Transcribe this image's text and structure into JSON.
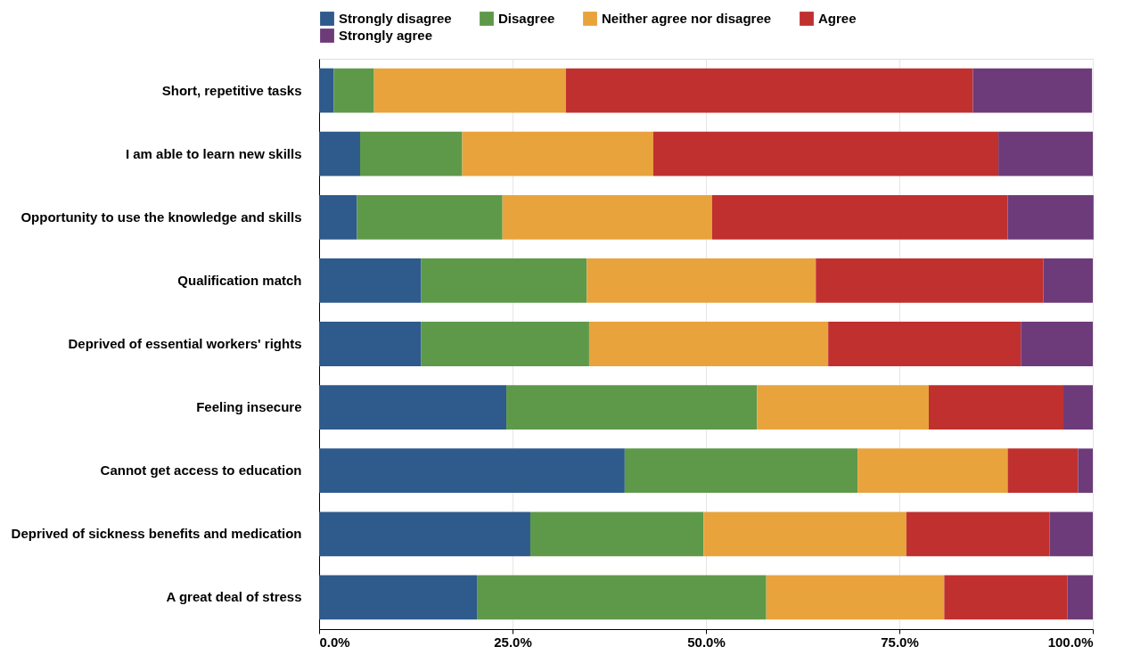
{
  "chart_data": {
    "type": "bar",
    "orientation": "horizontal",
    "stacked": true,
    "categories": [
      "Short, repetitive tasks",
      "I am able to learn new skills",
      "Opportunity to use the knowledge and skills",
      "Qualification match",
      "Deprived of essential workers' rights",
      "Feeling insecure",
      "Cannot get access to education",
      "Deprived of sickness benefits and medication",
      "A great deal of stress"
    ],
    "series": [
      {
        "name": "Strongly disagree",
        "color": "#2e5a8c",
        "values": [
          1.9,
          5.3,
          4.9,
          13.2,
          13.2,
          24.2,
          39.5,
          27.3,
          20.4
        ]
      },
      {
        "name": "Disagree",
        "color": "#5e994a",
        "values": [
          5.2,
          13.2,
          18.8,
          21.4,
          21.7,
          32.4,
          30.1,
          22.4,
          37.4
        ]
      },
      {
        "name": "Neither agree nor disagree",
        "color": "#e8a33d",
        "values": [
          24.8,
          24.7,
          27.1,
          29.6,
          30.9,
          22.2,
          19.4,
          26.2,
          23.0
        ]
      },
      {
        "name": "Agree",
        "color": "#c0302f",
        "values": [
          52.6,
          44.6,
          38.2,
          29.4,
          24.9,
          17.4,
          9.1,
          18.5,
          15.9
        ]
      },
      {
        "name": "Strongly agree",
        "color": "#6d3b7a",
        "values": [
          15.4,
          12.2,
          11.1,
          6.4,
          9.3,
          3.8,
          1.9,
          5.6,
          3.3
        ]
      }
    ],
    "xlim": [
      0,
      100
    ],
    "xticks": [
      {
        "value": 0,
        "label": "0.0%"
      },
      {
        "value": 25,
        "label": "25.0%"
      },
      {
        "value": 50,
        "label": "50.0%"
      },
      {
        "value": 75,
        "label": "75.0%"
      },
      {
        "value": 100,
        "label": "100.0%"
      }
    ],
    "grid": "x",
    "legend": "top"
  }
}
